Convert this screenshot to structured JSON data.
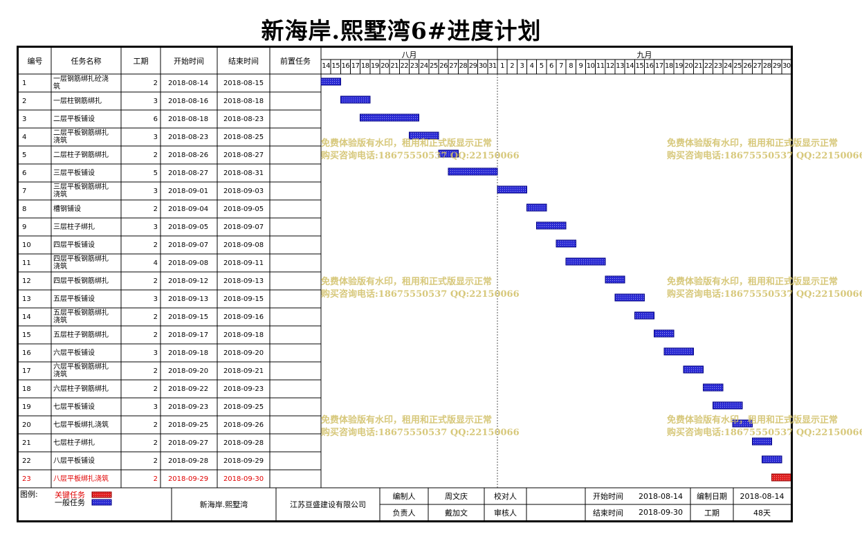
{
  "title": "新海岸.熙墅湾6#进度计划",
  "headers": {
    "id": "编号",
    "name": "任务名称",
    "duration": "工期",
    "start": "开始时间",
    "end": "结束时间",
    "predecessor": "前置任务"
  },
  "months": [
    {
      "label": "八月",
      "days": [
        14,
        15,
        16,
        17,
        18,
        19,
        20,
        21,
        22,
        23,
        24,
        25,
        26,
        27,
        28,
        29,
        30,
        31
      ]
    },
    {
      "label": "九月",
      "days": [
        1,
        2,
        3,
        4,
        5,
        6,
        7,
        8,
        9,
        10,
        11,
        12,
        13,
        14,
        15,
        16,
        17,
        18,
        19,
        20,
        21,
        22,
        23,
        24,
        25,
        26,
        27,
        28,
        29,
        30
      ]
    }
  ],
  "chart_data": {
    "type": "gantt",
    "title": "新海岸.熙墅湾6#进度计划",
    "x_range": [
      "2018-08-14",
      "2018-09-30"
    ],
    "tasks": [
      {
        "id": "1",
        "name": "一层钢筋绑扎砼浇筑",
        "duration": 2,
        "start": "2018-08-14",
        "end": "2018-08-15",
        "critical": false
      },
      {
        "id": "2",
        "name": "一层柱钢筋绑扎",
        "duration": 3,
        "start": "2018-08-16",
        "end": "2018-08-18",
        "critical": false
      },
      {
        "id": "3",
        "name": "二层平板铺设",
        "duration": 6,
        "start": "2018-08-18",
        "end": "2018-08-23",
        "critical": false
      },
      {
        "id": "4",
        "name": "二层平板钢筋绑扎浇筑",
        "duration": 3,
        "start": "2018-08-23",
        "end": "2018-08-25",
        "critical": false
      },
      {
        "id": "5",
        "name": "二层柱子钢筋绑扎",
        "duration": 2,
        "start": "2018-08-26",
        "end": "2018-08-27",
        "critical": false
      },
      {
        "id": "6",
        "name": "三层平板铺设",
        "duration": 5,
        "start": "2018-08-27",
        "end": "2018-08-31",
        "critical": false
      },
      {
        "id": "7",
        "name": "三层平板钢筋绑扎浇筑",
        "duration": 3,
        "start": "2018-09-01",
        "end": "2018-09-03",
        "critical": false
      },
      {
        "id": "8",
        "name": "槽钢铺设",
        "duration": 2,
        "start": "2018-09-04",
        "end": "2018-09-05",
        "critical": false
      },
      {
        "id": "9",
        "name": "三层柱子绑扎",
        "duration": 3,
        "start": "2018-09-05",
        "end": "2018-09-07",
        "critical": false
      },
      {
        "id": "10",
        "name": "四层平板铺设",
        "duration": 2,
        "start": "2018-09-07",
        "end": "2018-09-08",
        "critical": false
      },
      {
        "id": "11",
        "name": "四层平板钢筋绑扎浇筑",
        "duration": 4,
        "start": "2018-09-08",
        "end": "2018-09-11",
        "critical": false
      },
      {
        "id": "12",
        "name": "四层平板钢筋绑扎",
        "duration": 2,
        "start": "2018-09-12",
        "end": "2018-09-13",
        "critical": false
      },
      {
        "id": "13",
        "name": "五层平板铺设",
        "duration": 3,
        "start": "2018-09-13",
        "end": "2018-09-15",
        "critical": false
      },
      {
        "id": "14",
        "name": "五层平板钢筋绑扎浇筑",
        "duration": 2,
        "start": "2018-09-15",
        "end": "2018-09-16",
        "critical": false
      },
      {
        "id": "15",
        "name": "五层柱子钢筋绑扎",
        "duration": 2,
        "start": "2018-09-17",
        "end": "2018-09-18",
        "critical": false
      },
      {
        "id": "16",
        "name": "六层平板铺设",
        "duration": 3,
        "start": "2018-09-18",
        "end": "2018-09-20",
        "critical": false
      },
      {
        "id": "17",
        "name": "六层平板钢筋绑扎浇筑",
        "duration": 2,
        "start": "2018-09-20",
        "end": "2018-09-21",
        "critical": false
      },
      {
        "id": "18",
        "name": "六层柱子钢筋绑扎",
        "duration": 2,
        "start": "2018-09-22",
        "end": "2018-09-23",
        "critical": false
      },
      {
        "id": "19",
        "name": "七层平板铺设",
        "duration": 3,
        "start": "2018-09-23",
        "end": "2018-09-25",
        "critical": false
      },
      {
        "id": "20",
        "name": "七层平板绑扎浇筑",
        "duration": 2,
        "start": "2018-09-25",
        "end": "2018-09-26",
        "critical": false
      },
      {
        "id": "21",
        "name": "七层柱子绑扎",
        "duration": 2,
        "start": "2018-09-27",
        "end": "2018-09-28",
        "critical": false
      },
      {
        "id": "22",
        "name": "八层平板铺设",
        "duration": 2,
        "start": "2018-09-28",
        "end": "2018-09-29",
        "critical": false
      },
      {
        "id": "23",
        "name": "八层平板绑扎浇筑",
        "duration": 2,
        "start": "2018-09-29",
        "end": "2018-09-30",
        "critical": true
      }
    ],
    "colors": {
      "normal": "#2b2bd4",
      "critical": "#e02020"
    }
  },
  "watermark": {
    "line1": "免费体验版有水印，租用和正式版显示正常",
    "line2": "购买咨询电话:18675550537 QQ:22150066"
  },
  "footer": {
    "legend_label": "图例:",
    "legend_critical": "关键任务",
    "legend_normal": "一般任务",
    "project": "新海岸.熙墅湾",
    "company": "江苏亘盛建设有限公司",
    "maker_label": "编制人",
    "maker": "周文庆",
    "checker_label": "校对人",
    "checker": "",
    "owner_label": "负责人",
    "owner": "戴加文",
    "auditor_label": "审核人",
    "auditor": "",
    "start_label": "开始时间",
    "start": "2018-08-14",
    "end_label": "结束时间",
    "end": "2018-09-30",
    "date_label": "编制日期",
    "date": "2018-08-14",
    "period_label": "工期",
    "period": "48天"
  }
}
